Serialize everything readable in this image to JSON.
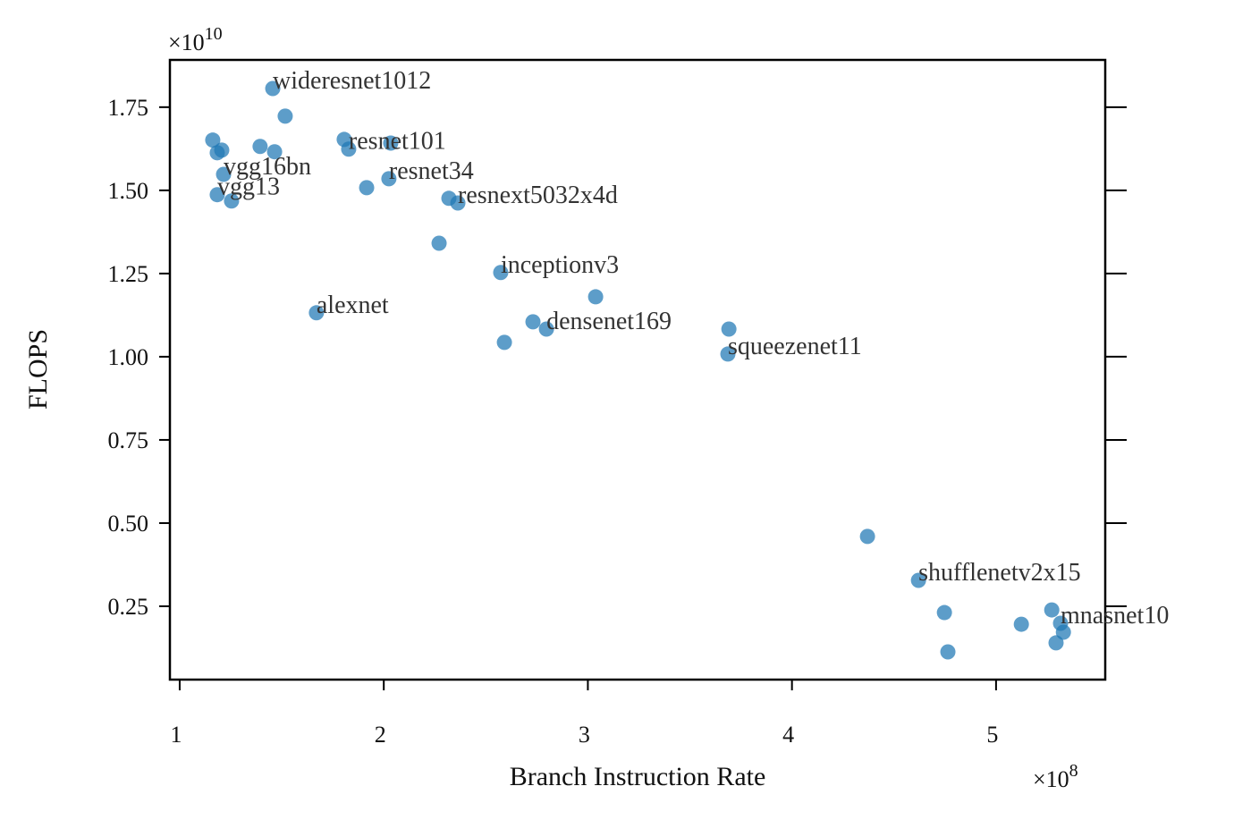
{
  "chart_data": {
    "type": "scatter",
    "xlabel": "Branch Instruction Rate",
    "ylabel": "FLOPS",
    "x_offset": {
      "base": "×10",
      "exp": "8"
    },
    "y_offset": {
      "base": "×10",
      "exp": "10"
    },
    "color": "#1f77b4",
    "xlim": [
      0.952,
      5.535
    ],
    "ylim": [
      0.0296,
      1.892
    ],
    "xticks": [
      1,
      2,
      3,
      4,
      5
    ],
    "yticks": [
      0.25,
      {
        "value": 0.5,
        "label": "0.50"
      },
      0.75,
      {
        "value": 1.0,
        "label": "1.00"
      },
      1.25,
      {
        "value": 1.5,
        "label": "1.50"
      },
      1.75
    ],
    "x": [
      1.456,
      1.517,
      1.162,
      1.184,
      1.206,
      1.394,
      1.465,
      1.806,
      1.828,
      2.034,
      1.215,
      1.916,
      2.025,
      1.184,
      1.254,
      2.319,
      2.363,
      2.271,
      2.573,
      3.038,
      1.67,
      2.731,
      2.797,
      2.591,
      3.691,
      3.686,
      4.37,
      4.62,
      4.747,
      4.764,
      5.124,
      5.273,
      5.316,
      5.33,
      5.294
    ],
    "y": [
      1.806,
      1.723,
      1.651,
      1.613,
      1.621,
      1.632,
      1.616,
      1.653,
      1.624,
      1.642,
      1.548,
      1.508,
      1.535,
      1.487,
      1.468,
      1.476,
      1.462,
      1.341,
      1.253,
      1.18,
      1.132,
      1.105,
      1.083,
      1.043,
      1.083,
      1.008,
      0.46,
      0.328,
      0.231,
      0.113,
      0.196,
      0.239,
      0.199,
      0.172,
      0.14
    ],
    "labels": [
      "wideresnet1012",
      null,
      null,
      null,
      null,
      null,
      null,
      null,
      "resnet101",
      null,
      "vgg16bn",
      null,
      "resnet34",
      "vgg13",
      null,
      null,
      "resnext5032x4d",
      null,
      "inceptionv3",
      null,
      "alexnet",
      null,
      "densenet169",
      null,
      null,
      "squeezenet11",
      null,
      "shufflenetv2x15",
      null,
      null,
      null,
      null,
      "mnasnet10",
      null,
      null
    ]
  }
}
